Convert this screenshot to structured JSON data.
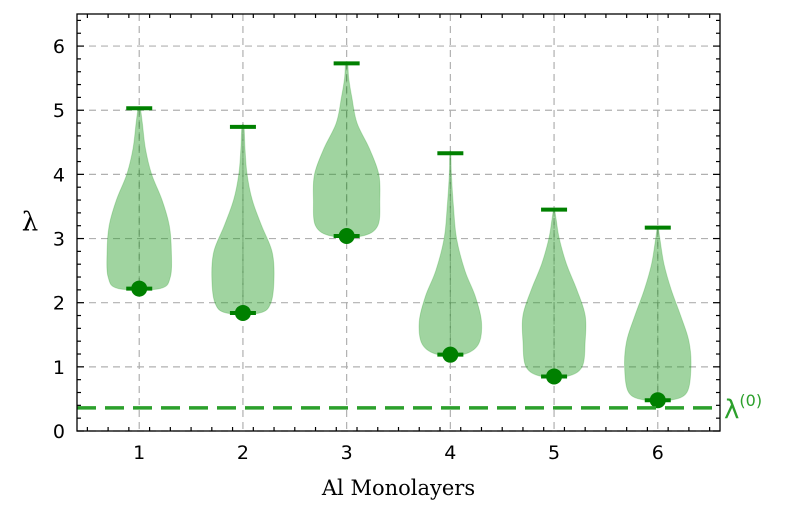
{
  "chart_data": {
    "type": "violin",
    "xlabel": "Al Monolayers",
    "ylabel": "λ",
    "xlim": [
      0.4,
      6.6
    ],
    "ylim": [
      0,
      6.5
    ],
    "x_ticks": [
      "1",
      "2",
      "3",
      "4",
      "5",
      "6"
    ],
    "y_ticks": [
      "0",
      "1",
      "2",
      "3",
      "4",
      "5",
      "6"
    ],
    "grid": true,
    "colors": {
      "violin": "#2ca02c",
      "marker": "#008000",
      "reference": "#2ca02c"
    },
    "violins": [
      {
        "x": 1,
        "min": 2.22,
        "max": 5.03,
        "point": 2.22,
        "profile": [
          [
            2.22,
            0.2
          ],
          [
            2.4,
            0.3
          ],
          [
            2.8,
            0.31
          ],
          [
            3.2,
            0.29
          ],
          [
            3.6,
            0.22
          ],
          [
            4.0,
            0.12
          ],
          [
            4.4,
            0.06
          ],
          [
            4.8,
            0.03
          ],
          [
            5.03,
            0.01
          ]
        ]
      },
      {
        "x": 2,
        "min": 1.84,
        "max": 4.74,
        "point": 1.84,
        "profile": [
          [
            1.84,
            0.16
          ],
          [
            2.0,
            0.27
          ],
          [
            2.4,
            0.3
          ],
          [
            2.8,
            0.28
          ],
          [
            3.2,
            0.18
          ],
          [
            3.6,
            0.09
          ],
          [
            4.0,
            0.04
          ],
          [
            4.4,
            0.02
          ],
          [
            4.74,
            0.01
          ]
        ]
      },
      {
        "x": 3,
        "min": 3.04,
        "max": 5.73,
        "point": 3.04,
        "profile": [
          [
            3.04,
            0.15
          ],
          [
            3.2,
            0.3
          ],
          [
            3.6,
            0.32
          ],
          [
            4.0,
            0.31
          ],
          [
            4.4,
            0.22
          ],
          [
            4.8,
            0.1
          ],
          [
            5.2,
            0.05
          ],
          [
            5.5,
            0.02
          ],
          [
            5.73,
            0.01
          ]
        ]
      },
      {
        "x": 4,
        "min": 1.19,
        "max": 4.33,
        "point": 1.19,
        "profile": [
          [
            1.19,
            0.12
          ],
          [
            1.35,
            0.27
          ],
          [
            1.7,
            0.3
          ],
          [
            2.1,
            0.24
          ],
          [
            2.5,
            0.14
          ],
          [
            3.0,
            0.06
          ],
          [
            3.5,
            0.03
          ],
          [
            4.0,
            0.01
          ],
          [
            4.33,
            0.005
          ]
        ]
      },
      {
        "x": 5,
        "min": 0.85,
        "max": 3.45,
        "point": 0.85,
        "profile": [
          [
            0.85,
            0.12
          ],
          [
            1.0,
            0.27
          ],
          [
            1.4,
            0.3
          ],
          [
            1.8,
            0.3
          ],
          [
            2.2,
            0.22
          ],
          [
            2.6,
            0.12
          ],
          [
            3.0,
            0.05
          ],
          [
            3.3,
            0.02
          ],
          [
            3.45,
            0.005
          ]
        ]
      },
      {
        "x": 6,
        "min": 0.48,
        "max": 3.17,
        "point": 0.48,
        "profile": [
          [
            0.48,
            0.12
          ],
          [
            0.6,
            0.28
          ],
          [
            1.0,
            0.32
          ],
          [
            1.4,
            0.3
          ],
          [
            1.8,
            0.22
          ],
          [
            2.2,
            0.13
          ],
          [
            2.6,
            0.06
          ],
          [
            3.0,
            0.02
          ],
          [
            3.17,
            0.005
          ]
        ]
      }
    ],
    "reference_line": {
      "y": 0.36,
      "label": "λ",
      "label_sup": "(0)"
    }
  }
}
